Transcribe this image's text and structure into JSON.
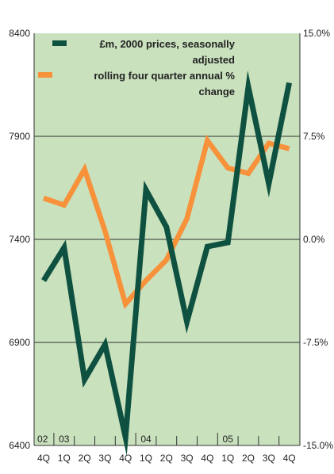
{
  "chart_data": {
    "type": "line",
    "x": [
      "4Q",
      "1Q",
      "2Q",
      "3Q",
      "4Q",
      "1Q",
      "2Q",
      "3Q",
      "4Q",
      "1Q",
      "2Q",
      "3Q",
      "4Q"
    ],
    "year_labels": [
      "02",
      "03",
      "04",
      "05"
    ],
    "series": [
      {
        "name": "£m, 2000 prices, seasonally adjusted",
        "axis": "left",
        "color": "#0f5140",
        "values": [
          7200,
          7360,
          6720,
          6890,
          6440,
          7640,
          7460,
          7000,
          7365,
          7385,
          8140,
          7670,
          8160
        ]
      },
      {
        "name": "rolling four quarter annual % change",
        "axis": "right",
        "color": "#f7913a",
        "values": [
          3.0,
          2.5,
          5.1,
          0.6,
          -4.7,
          -3.0,
          -1.5,
          1.5,
          7.2,
          5.2,
          4.8,
          7.0,
          6.6
        ]
      }
    ],
    "yaxis_left": {
      "ticks": [
        "8400",
        "7900",
        "7400",
        "6900",
        "6400"
      ],
      "range": [
        6400,
        8400
      ]
    },
    "yaxis_right": {
      "ticks": [
        "15.0%",
        "7.5%",
        "0.0%",
        "-7.5%",
        "-15.0%"
      ],
      "range": [
        -15,
        15
      ]
    },
    "legend_lines": [
      [
        "£m, 2000 prices, seasonally",
        "adjusted"
      ],
      [
        "rolling four quarter annual %",
        "change"
      ]
    ],
    "legend_position": "top-right",
    "grid": "horizontal",
    "background": "#c9e1bd"
  }
}
